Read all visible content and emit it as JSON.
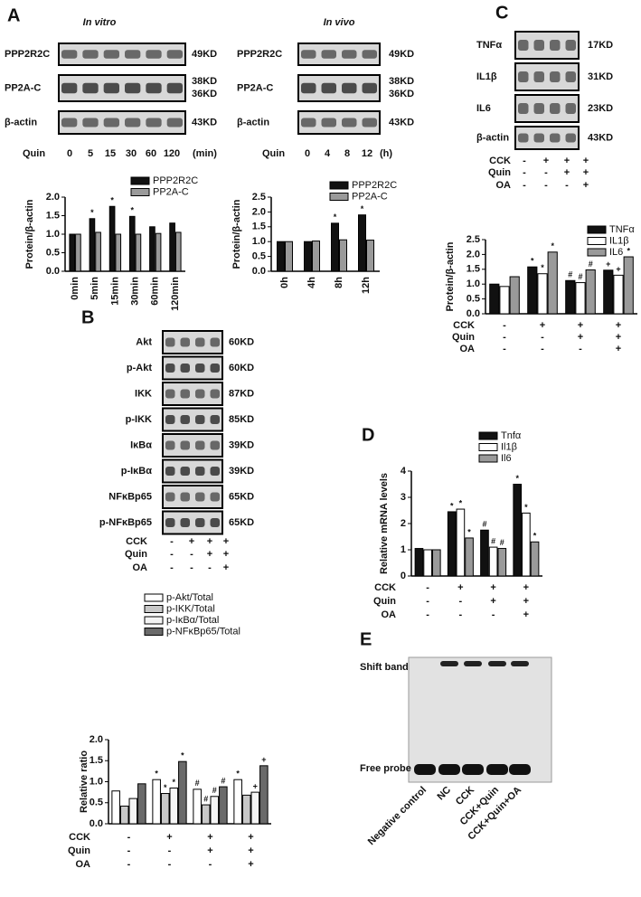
{
  "panels": {
    "A": {
      "label": "A",
      "blots": [
        {
          "title": "In vitro",
          "rows": [
            {
              "name": "PPP2R2C",
              "sizes": [
                "49KD"
              ]
            },
            {
              "name": "PP2A-C",
              "sizes": [
                "38KD",
                "36KD"
              ]
            },
            {
              "name": "β-actin",
              "sizes": [
                "43KD"
              ]
            }
          ],
          "treatment": {
            "name": "Quin",
            "doses": [
              "0",
              "5",
              "15",
              "30",
              "60",
              "120"
            ],
            "unit": "(min)"
          }
        },
        {
          "title": "In vivo",
          "rows": [
            {
              "name": "PPP2R2C",
              "sizes": [
                "49KD"
              ]
            },
            {
              "name": "PP2A-C",
              "sizes": [
                "38KD",
                "36KD"
              ]
            },
            {
              "name": "β-actin",
              "sizes": [
                "43KD"
              ]
            }
          ],
          "treatment": {
            "name": "Quin",
            "doses": [
              "0",
              "4",
              "8",
              "12"
            ],
            "unit": "(h)"
          }
        }
      ]
    },
    "B": {
      "label": "B",
      "rows": [
        {
          "name": "Akt",
          "size": "60KD"
        },
        {
          "name": "p-Akt",
          "size": "60KD"
        },
        {
          "name": "IKK",
          "size": "87KD"
        },
        {
          "name": "p-IKK",
          "size": "85KD"
        },
        {
          "name": "IκBα",
          "size": "39KD"
        },
        {
          "name": "p-IκBα",
          "size": "39KD"
        },
        {
          "name": "NFκBp65",
          "size": "65KD"
        },
        {
          "name": "p-NFκBp65",
          "size": "65KD"
        }
      ],
      "conditions": [
        {
          "name": "CCK",
          "signs": [
            "-",
            "+",
            "+",
            "+"
          ]
        },
        {
          "name": "Quin",
          "signs": [
            "-",
            "-",
            "+",
            "+"
          ]
        },
        {
          "name": "OA",
          "signs": [
            "-",
            "-",
            "-",
            "+"
          ]
        }
      ]
    },
    "C": {
      "label": "C",
      "rows": [
        {
          "name": "TNFα",
          "size": "17KD"
        },
        {
          "name": "IL1β",
          "size": "31KD"
        },
        {
          "name": "IL6",
          "size": "23KD"
        },
        {
          "name": "β-actin",
          "size": "43KD"
        }
      ],
      "conditions": [
        {
          "name": "CCK",
          "signs": [
            "-",
            "+",
            "+",
            "+"
          ]
        },
        {
          "name": "Quin",
          "signs": [
            "-",
            "-",
            "+",
            "+"
          ]
        },
        {
          "name": "OA",
          "signs": [
            "-",
            "-",
            "-",
            "+"
          ]
        }
      ]
    },
    "D": {
      "label": "D"
    },
    "E": {
      "label": "E",
      "bands": [
        "Shift band",
        "Free probe"
      ],
      "lanes": [
        "Negative control",
        "NC",
        "CCK",
        "CCK+Quin",
        "CCK+Quin+OA"
      ]
    }
  },
  "chart_data": [
    {
      "type": "bar",
      "y_label": "Protein/β-actin",
      "categories": [
        "0min",
        "5min",
        "15min",
        "30min",
        "60min",
        "120min"
      ],
      "series": [
        {
          "name": "PPP2R2C",
          "color": "#111111",
          "values": [
            1.0,
            1.42,
            1.75,
            1.48,
            1.2,
            1.3
          ],
          "annotations": [
            null,
            "*",
            "*",
            "*",
            null,
            null
          ]
        },
        {
          "name": "PP2A-C",
          "color": "#9a9a9a",
          "values": [
            1.0,
            1.05,
            1.0,
            1.0,
            1.02,
            1.05
          ],
          "annotations": [
            null,
            null,
            null,
            null,
            null,
            null
          ]
        }
      ],
      "ylim": [
        0,
        2.0
      ],
      "yticks": [
        {
          "value": 0,
          "label": "0.0"
        },
        {
          "value": 0.5,
          "label": "0.5"
        },
        {
          "value": 1.0,
          "label": "1.0"
        },
        {
          "value": 1.5,
          "label": "1.5"
        },
        {
          "value": 2.0,
          "label": "2.0"
        }
      ]
    },
    {
      "type": "bar",
      "y_label": "Protein/β-actin",
      "categories": [
        "0h",
        "4h",
        "8h",
        "12h"
      ],
      "series": [
        {
          "name": "PPP2R2C",
          "color": "#111111",
          "values": [
            1.0,
            1.0,
            1.62,
            1.9
          ],
          "annotations": [
            null,
            null,
            "*",
            "*"
          ]
        },
        {
          "name": "PP2A-C",
          "color": "#9a9a9a",
          "values": [
            1.0,
            1.02,
            1.06,
            1.05
          ],
          "annotations": [
            null,
            null,
            null,
            null
          ]
        }
      ],
      "ylim": [
        0,
        2.5
      ],
      "yticks": [
        {
          "value": 0,
          "label": "0.0"
        },
        {
          "value": 0.5,
          "label": "0.5"
        },
        {
          "value": 1.0,
          "label": "1.0"
        },
        {
          "value": 1.5,
          "label": "1.5"
        },
        {
          "value": 2.0,
          "label": "2.0"
        },
        {
          "value": 2.5,
          "label": "2.5"
        }
      ]
    },
    {
      "type": "bar",
      "y_label": "Protein/β-actin",
      "categories": [
        null,
        null,
        null,
        null
      ],
      "conditions": [
        {
          "name": "CCK",
          "signs": [
            "-",
            "+",
            "+",
            "+"
          ]
        },
        {
          "name": "Quin",
          "signs": [
            "-",
            "-",
            "+",
            "+"
          ]
        },
        {
          "name": "OA",
          "signs": [
            "-",
            "-",
            "-",
            "+"
          ]
        }
      ],
      "series": [
        {
          "name": "TNFα",
          "color": "#111111",
          "values": [
            1.0,
            1.58,
            1.12,
            1.47
          ],
          "annotations": [
            null,
            "*",
            "#",
            "+"
          ]
        },
        {
          "name": "IL1β",
          "color": "#ffffff",
          "values": [
            0.92,
            1.35,
            1.05,
            1.3
          ],
          "annotations": [
            null,
            "*",
            "#",
            "+"
          ]
        },
        {
          "name": "IL6",
          "color": "#9a9a9a",
          "values": [
            1.25,
            2.08,
            1.48,
            1.92
          ],
          "annotations": [
            null,
            "*",
            "#",
            "*"
          ]
        }
      ],
      "ylim": [
        0,
        2.5
      ],
      "yticks": [
        {
          "value": 0,
          "label": "0.0"
        },
        {
          "value": 0.5,
          "label": "0.5"
        },
        {
          "value": 1.0,
          "label": "1.0"
        },
        {
          "value": 1.5,
          "label": "1.5"
        },
        {
          "value": 2.0,
          "label": "2.0"
        },
        {
          "value": 2.5,
          "label": "2.5"
        }
      ]
    },
    {
      "type": "bar",
      "y_label": "Relative mRNA levels",
      "categories": [
        null,
        null,
        null,
        null
      ],
      "conditions": [
        {
          "name": "CCK",
          "signs": [
            "-",
            "+",
            "+",
            "+"
          ]
        },
        {
          "name": "Quin",
          "signs": [
            "-",
            "-",
            "+",
            "+"
          ]
        },
        {
          "name": "OA",
          "signs": [
            "-",
            "-",
            "-",
            "+"
          ]
        }
      ],
      "series": [
        {
          "name": "Tnfα",
          "color": "#111111",
          "values": [
            1.05,
            2.45,
            1.75,
            3.5
          ],
          "annotations": [
            null,
            "*",
            "#",
            "*"
          ]
        },
        {
          "name": "Il1β",
          "color": "#ffffff",
          "values": [
            1.0,
            2.55,
            1.1,
            2.4
          ],
          "annotations": [
            null,
            "*",
            "#",
            "*"
          ]
        },
        {
          "name": "Il6",
          "color": "#9a9a9a",
          "values": [
            1.0,
            1.45,
            1.05,
            1.3
          ],
          "annotations": [
            null,
            "*",
            "#",
            "*"
          ]
        }
      ],
      "ylim": [
        0,
        4
      ],
      "yticks": [
        0,
        1,
        2,
        3,
        4
      ]
    },
    {
      "type": "bar",
      "y_label": "Relative ratio",
      "categories": [
        null,
        null,
        null,
        null
      ],
      "conditions": [
        {
          "name": "CCK",
          "signs": [
            "-",
            "+",
            "+",
            "+"
          ]
        },
        {
          "name": "Quin",
          "signs": [
            "-",
            "-",
            "+",
            "+"
          ]
        },
        {
          "name": "OA",
          "signs": [
            "-",
            "-",
            "-",
            "+"
          ]
        }
      ],
      "series": [
        {
          "name": "p-Akt/Total",
          "color": "#ffffff",
          "values": [
            0.78,
            1.05,
            0.82,
            1.05
          ],
          "annotations": [
            null,
            "*",
            "#",
            "*"
          ]
        },
        {
          "name": "p-IKK/Total",
          "color": "#c8c8c8",
          "values": [
            0.42,
            0.72,
            0.45,
            0.68
          ],
          "annotations": [
            null,
            "*",
            "#",
            null
          ]
        },
        {
          "name": "p-IκBα/Total",
          "color": "#f4f4f4",
          "values": [
            0.6,
            0.85,
            0.65,
            0.75
          ],
          "annotations": [
            null,
            "*",
            "#",
            "+"
          ]
        },
        {
          "name": "p-NFκBp65/Total",
          "color": "#6a6a6a",
          "values": [
            0.95,
            1.48,
            0.88,
            1.38
          ],
          "annotations": [
            null,
            "*",
            "#",
            "+"
          ]
        }
      ],
      "ylim": [
        0,
        2.0
      ],
      "yticks": [
        {
          "value": 0,
          "label": "0.0"
        },
        {
          "value": 0.5,
          "label": "0.5"
        },
        {
          "value": 1.0,
          "label": "1.0"
        },
        {
          "value": 1.5,
          "label": "1.5"
        },
        {
          "value": 2.0,
          "label": "2.0"
        }
      ]
    }
  ]
}
